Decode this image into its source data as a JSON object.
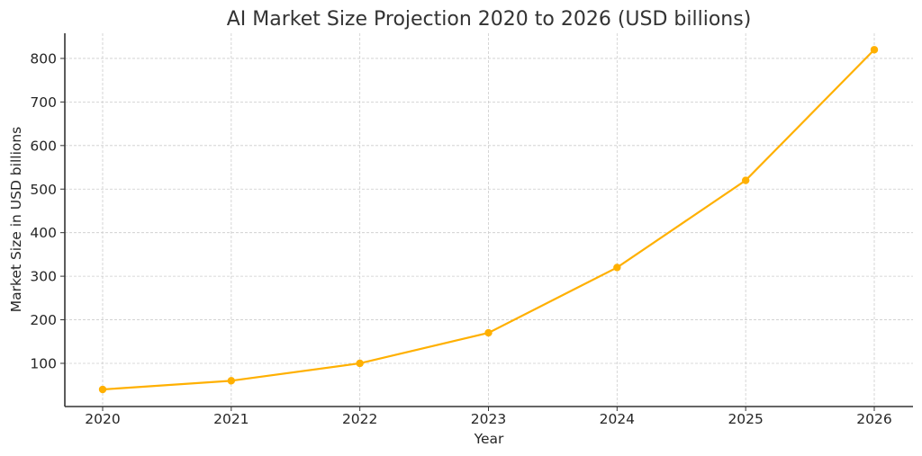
{
  "chart_data": {
    "type": "line",
    "title": "AI Market Size Projection 2020 to 2026 (USD billions)",
    "xlabel": "Year",
    "ylabel": "Market Size in USD billions",
    "categories": [
      "2020",
      "2021",
      "2022",
      "2023",
      "2024",
      "2025",
      "2026"
    ],
    "series": [
      {
        "name": "AI Market Size",
        "values": [
          40,
          60,
          100,
          170,
          320,
          520,
          820
        ],
        "color": "#FFB000",
        "marker": "circle"
      }
    ],
    "yticks": [
      "100",
      "200",
      "300",
      "400",
      "500",
      "600",
      "700",
      "800"
    ],
    "ylim": [
      0,
      860
    ],
    "grid": true,
    "legend": null
  }
}
